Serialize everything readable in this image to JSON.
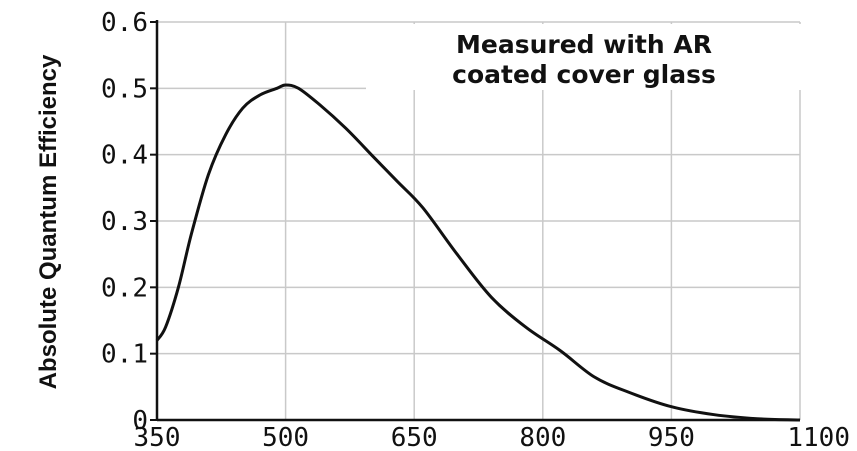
{
  "chart_data": {
    "type": "line",
    "title": "",
    "ylabel": "Absolute Quantum Efficiency",
    "xlabel": "",
    "annotation": [
      "Measured with AR",
      "coated cover glass"
    ],
    "xlim": [
      350,
      1100
    ],
    "ylim": [
      0,
      0.6
    ],
    "x_ticks": [
      "350",
      "500",
      "650",
      "800",
      "950",
      "1100"
    ],
    "y_ticks": [
      "0",
      "0.1",
      "0.2",
      "0.3",
      "0.4",
      "0.5",
      "0.6"
    ],
    "x_tick_values": [
      350,
      500,
      650,
      800,
      950,
      1100
    ],
    "y_tick_values": [
      0,
      0.1,
      0.2,
      0.3,
      0.4,
      0.5,
      0.6
    ],
    "grid": true,
    "series": [
      {
        "x": [
          350,
          360,
          375,
          390,
          410,
          430,
          450,
          470,
          490,
          500,
          515,
          540,
          570,
          600,
          630,
          660,
          700,
          740,
          780,
          820,
          860,
          900,
          950,
          1000,
          1050,
          1100
        ],
        "y": [
          0.12,
          0.14,
          0.2,
          0.28,
          0.37,
          0.43,
          0.47,
          0.49,
          0.5,
          0.505,
          0.5,
          0.475,
          0.44,
          0.4,
          0.36,
          0.32,
          0.25,
          0.185,
          0.14,
          0.105,
          0.065,
          0.042,
          0.02,
          0.008,
          0.002,
          0.0
        ]
      }
    ],
    "colors": {
      "line": "#111111",
      "grid": "#c9c9c9",
      "axis": "#111111"
    }
  }
}
